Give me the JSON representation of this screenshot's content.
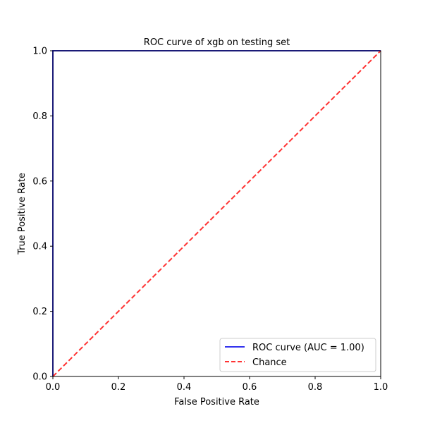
{
  "chart_data": {
    "type": "line",
    "title": "ROC curve of xgb on testing set",
    "xlabel": "False Positive Rate",
    "ylabel": "True Positive Rate",
    "xlim": [
      0.0,
      1.0
    ],
    "ylim": [
      0.0,
      1.0
    ],
    "xticks": [
      "0.0",
      "0.2",
      "0.4",
      "0.6",
      "0.8",
      "1.0"
    ],
    "yticks": [
      "0.0",
      "0.2",
      "0.4",
      "0.6",
      "0.8",
      "1.0"
    ],
    "grid": false,
    "legend_position": "lower-right",
    "series": [
      {
        "name": "ROC curve (AUC = 1.00)",
        "color": "#3333ee",
        "style": "solid",
        "x": [
          0.0,
          0.0,
          1.0
        ],
        "y": [
          0.0,
          1.0,
          1.0
        ]
      },
      {
        "name": "Chance",
        "color": "#ff3333",
        "style": "dashed",
        "x": [
          0.0,
          1.0
        ],
        "y": [
          0.0,
          1.0
        ]
      }
    ]
  }
}
